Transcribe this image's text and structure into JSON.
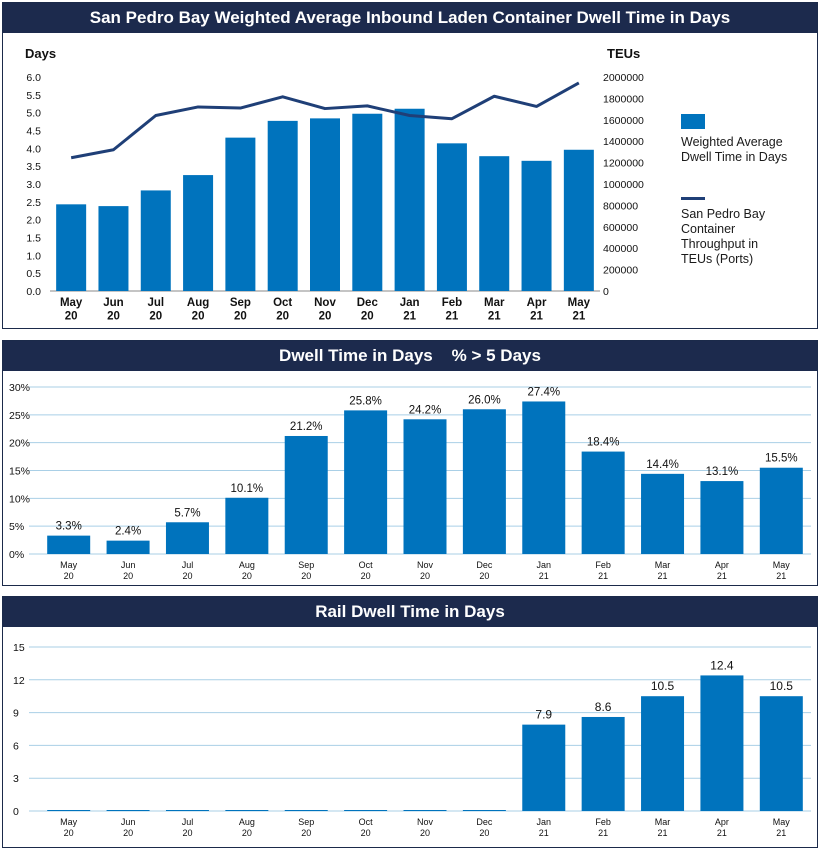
{
  "colors": {
    "bar": "#0073bd",
    "line": "#1f3f77",
    "header_bg": "#1c2a4d",
    "grid": "#a9cfe6"
  },
  "chart_data": [
    {
      "type": "bar",
      "title": "San Pedro Bay Weighted Average Inbound Laden Container Dwell Time in Days",
      "ylabel": "Days",
      "y2label": "TEUs",
      "categories": [
        "May 20",
        "Jun 20",
        "Jul 20",
        "Aug 20",
        "Sep 20",
        "Oct 20",
        "Nov 20",
        "Dec 20",
        "Jan 21",
        "Feb 21",
        "Mar 21",
        "Apr 21",
        "May 21"
      ],
      "ylim": [
        0,
        6.0
      ],
      "yticks": [
        "0.0",
        "0.5",
        "1.0",
        "1.5",
        "2.0",
        "2.5",
        "3.0",
        "3.5",
        "4.0",
        "4.5",
        "5.0",
        "5.5",
        "6.0"
      ],
      "y2lim": [
        0,
        2000000
      ],
      "y2ticks": [
        "0",
        "200000",
        "400000",
        "600000",
        "800000",
        "1000000",
        "1200000",
        "1400000",
        "1600000",
        "1800000",
        "2000000"
      ],
      "series": [
        {
          "name": "Weighted Average Dwell Time in Days",
          "type": "bar",
          "axis": "left",
          "values": [
            2.43,
            2.38,
            2.82,
            3.25,
            4.3,
            4.77,
            4.84,
            4.97,
            5.11,
            4.14,
            3.78,
            3.65,
            3.96
          ]
        },
        {
          "name": "San Pedro Bay Container Throughput in TEUs (Ports)",
          "type": "line",
          "axis": "right",
          "values": [
            1245000,
            1320000,
            1640000,
            1720000,
            1710000,
            1815000,
            1705000,
            1730000,
            1640000,
            1610000,
            1820000,
            1725000,
            1945000
          ]
        }
      ],
      "legend": "right",
      "grid": false
    },
    {
      "type": "bar",
      "title": "Dwell Time in Days    % > 5 Days",
      "categories": [
        "May 20",
        "Jun 20",
        "Jul 20",
        "Aug 20",
        "Sep 20",
        "Oct 20",
        "Nov 20",
        "Dec 20",
        "Jan 21",
        "Feb 21",
        "Mar 21",
        "Apr 21",
        "May 21"
      ],
      "values": [
        3.3,
        2.4,
        5.7,
        10.1,
        21.2,
        25.8,
        24.2,
        26.0,
        27.4,
        18.4,
        14.4,
        13.1,
        15.5
      ],
      "labels": [
        "3.3%",
        "2.4%",
        "5.7%",
        "10.1%",
        "21.2%",
        "25.8%",
        "24.2%",
        "26.0%",
        "27.4%",
        "18.4%",
        "14.4%",
        "13.1%",
        "15.5%"
      ],
      "ylim": [
        0,
        30
      ],
      "yticks": [
        "0%",
        "5%",
        "10%",
        "15%",
        "20%",
        "25%",
        "30%"
      ],
      "grid": true
    },
    {
      "type": "bar",
      "title": "Rail Dwell Time in Days",
      "categories": [
        "May 20",
        "Jun 20",
        "Jul 20",
        "Aug 20",
        "Sep 20",
        "Oct 20",
        "Nov 20",
        "Dec 20",
        "Jan 21",
        "Feb 21",
        "Mar 21",
        "Apr 21",
        "May 21"
      ],
      "values": [
        0,
        0,
        0,
        0,
        0,
        0,
        0,
        0,
        7.9,
        8.6,
        10.5,
        12.4,
        10.5
      ],
      "labels": [
        "",
        "",
        "",
        "",
        "",
        "",
        "",
        "",
        "7.9",
        "8.6",
        "10.5",
        "12.4",
        "10.5"
      ],
      "ylim": [
        0,
        15
      ],
      "yticks": [
        "0",
        "3",
        "6",
        "9",
        "12",
        "15"
      ],
      "grid": true
    }
  ]
}
